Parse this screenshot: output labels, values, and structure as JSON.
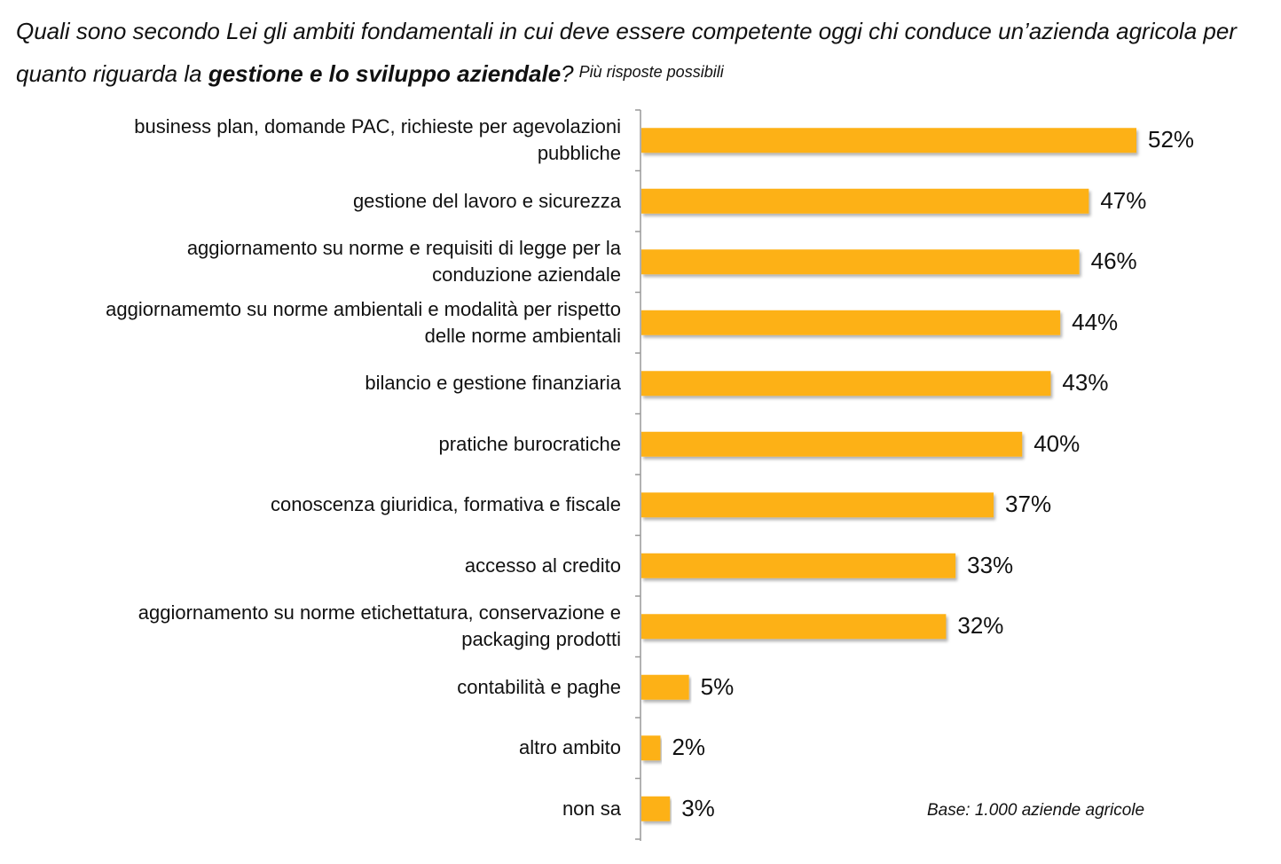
{
  "chart_data": {
    "type": "barh",
    "title_parts": [
      "Quali sono secondo Lei gli ambiti fondamentali in cui deve essere competente oggi chi conduce un’azienda agricola per quanto riguarda la",
      "gestione e lo sviluppo aziendale",
      "?"
    ],
    "subtitle": "Più risposte possibili",
    "note": "Base: 1.000 aziende agricole",
    "color": "#fdb112",
    "categories": [
      "business plan, domande PAC, richieste per agevolazioni\npubbliche",
      "gestione del lavoro e sicurezza",
      "aggiornamento su norme e requisiti di legge per la\nconduzione aziendale",
      "aggiornamemto su norme ambientali e modalità per rispetto\ndelle norme ambientali",
      "bilancio e gestione finanziaria",
      "pratiche burocratiche",
      "conoscenza giuridica, formativa e fiscale",
      "accesso al credito",
      "aggiornamento su norme etichettatura, conservazione e\npackaging prodotti",
      "contabilità e paghe",
      "altro ambito",
      "non sa"
    ],
    "values": [
      52,
      47,
      46,
      44,
      43,
      40,
      37,
      33,
      32,
      5,
      2,
      3
    ],
    "value_labels": [
      "52%",
      "47%",
      "46%",
      "44%",
      "43%",
      "40%",
      "37%",
      "33%",
      "32%",
      "5%",
      "2%",
      "3%"
    ]
  }
}
